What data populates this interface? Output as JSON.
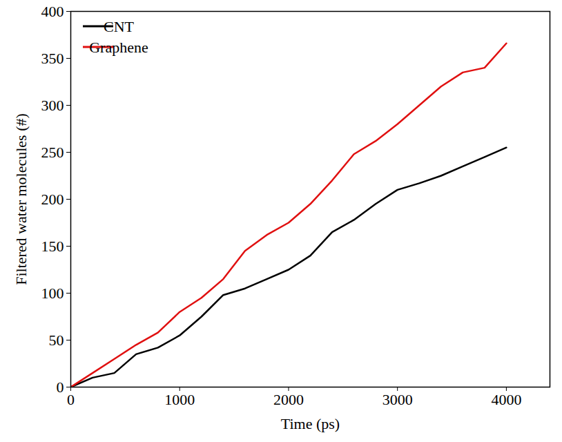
{
  "chart_data": {
    "type": "line",
    "xlabel": "Time (ps)",
    "ylabel": "Filtered water molecules (#)",
    "x": [
      0,
      200,
      400,
      600,
      800,
      1000,
      1200,
      1400,
      1600,
      1800,
      2000,
      2200,
      2400,
      2600,
      2800,
      3000,
      3200,
      3400,
      3600,
      3800,
      4000
    ],
    "series": [
      {
        "name": "CNT",
        "color": "#000000",
        "values": [
          0,
          10,
          15,
          35,
          42,
          55,
          75,
          98,
          105,
          115,
          125,
          140,
          165,
          178,
          195,
          210,
          217,
          225,
          235,
          245,
          255
        ]
      },
      {
        "name": "Graphene",
        "color": "#e01010",
        "values": [
          0,
          15,
          30,
          45,
          58,
          80,
          95,
          115,
          145,
          162,
          175,
          195,
          220,
          248,
          262,
          280,
          300,
          320,
          335,
          340,
          366
        ]
      }
    ],
    "xlim": [
      0,
      4400
    ],
    "xticks": [
      0,
      1000,
      2000,
      3000,
      4000
    ],
    "ylim": [
      0,
      400
    ],
    "yticks": [
      0,
      50,
      100,
      150,
      200,
      250,
      300,
      350,
      400
    ],
    "grid": false,
    "legend": "upper left"
  }
}
